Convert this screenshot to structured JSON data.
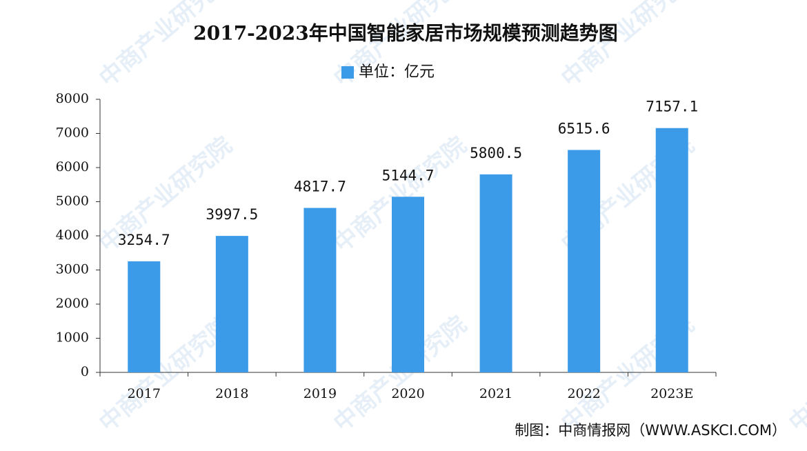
{
  "chart_data": {
    "type": "bar",
    "title": "2017-2023年中国智能家居市场规模预测趋势图",
    "categories": [
      "2017",
      "2018",
      "2019",
      "2020",
      "2021",
      "2022",
      "2023E"
    ],
    "series": [
      {
        "name": "单位：亿元",
        "color": "#3b9be9",
        "values": [
          3254.7,
          3997.5,
          4817.7,
          5144.7,
          5800.5,
          6515.6,
          7157.1
        ]
      }
    ],
    "ylim": [
      0,
      8000
    ],
    "yticks": [
      0,
      1000,
      2000,
      3000,
      4000,
      5000,
      6000,
      7000,
      8000
    ],
    "legend": "top",
    "grid": false,
    "source": "制图：中商情报网（WWW.ASKCI.COM）",
    "watermark": "中商产业研究院"
  }
}
